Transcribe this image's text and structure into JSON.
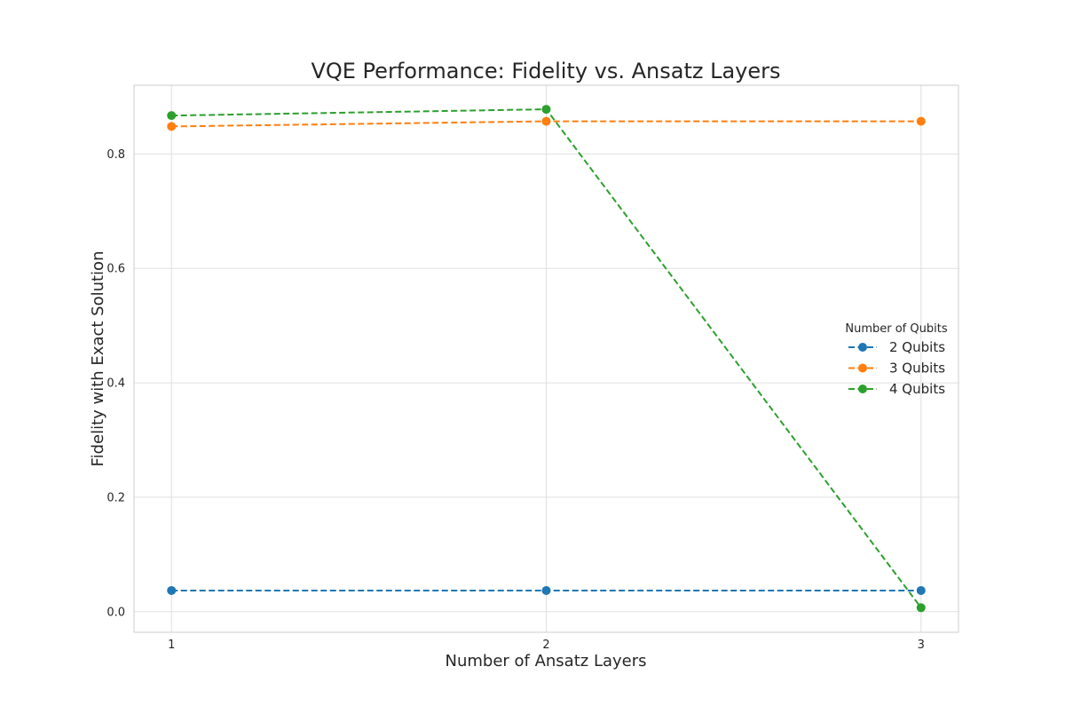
{
  "chart_data": {
    "type": "line",
    "title": "VQE Performance: Fidelity vs. Ansatz Layers",
    "xlabel": "Number of Ansatz Layers",
    "ylabel": "Fidelity with Exact Solution",
    "x": [
      1,
      2,
      3
    ],
    "xticks": [
      1,
      2,
      3
    ],
    "yticks": [
      0.0,
      0.2,
      0.4,
      0.6,
      0.8
    ],
    "ytick_labels": [
      "0.0",
      "0.2",
      "0.4",
      "0.6",
      "0.8"
    ],
    "xlim": [
      0.9,
      3.1
    ],
    "ylim": [
      -0.036,
      0.92
    ],
    "grid": true,
    "legend": {
      "title": "Number of Qubits",
      "position": "center-right"
    },
    "series": [
      {
        "name": "2 Qubits",
        "values": [
          0.037,
          0.037,
          0.037
        ],
        "color": "#1f77b4",
        "linestyle": "dashed",
        "marker": "circle"
      },
      {
        "name": "3 Qubits",
        "values": [
          0.848,
          0.857,
          0.857
        ],
        "color": "#ff7f0e",
        "linestyle": "dashed",
        "marker": "circle"
      },
      {
        "name": "4 Qubits",
        "values": [
          0.867,
          0.878,
          0.007
        ],
        "color": "#2ca02c",
        "linestyle": "dashed",
        "marker": "circle"
      }
    ]
  }
}
